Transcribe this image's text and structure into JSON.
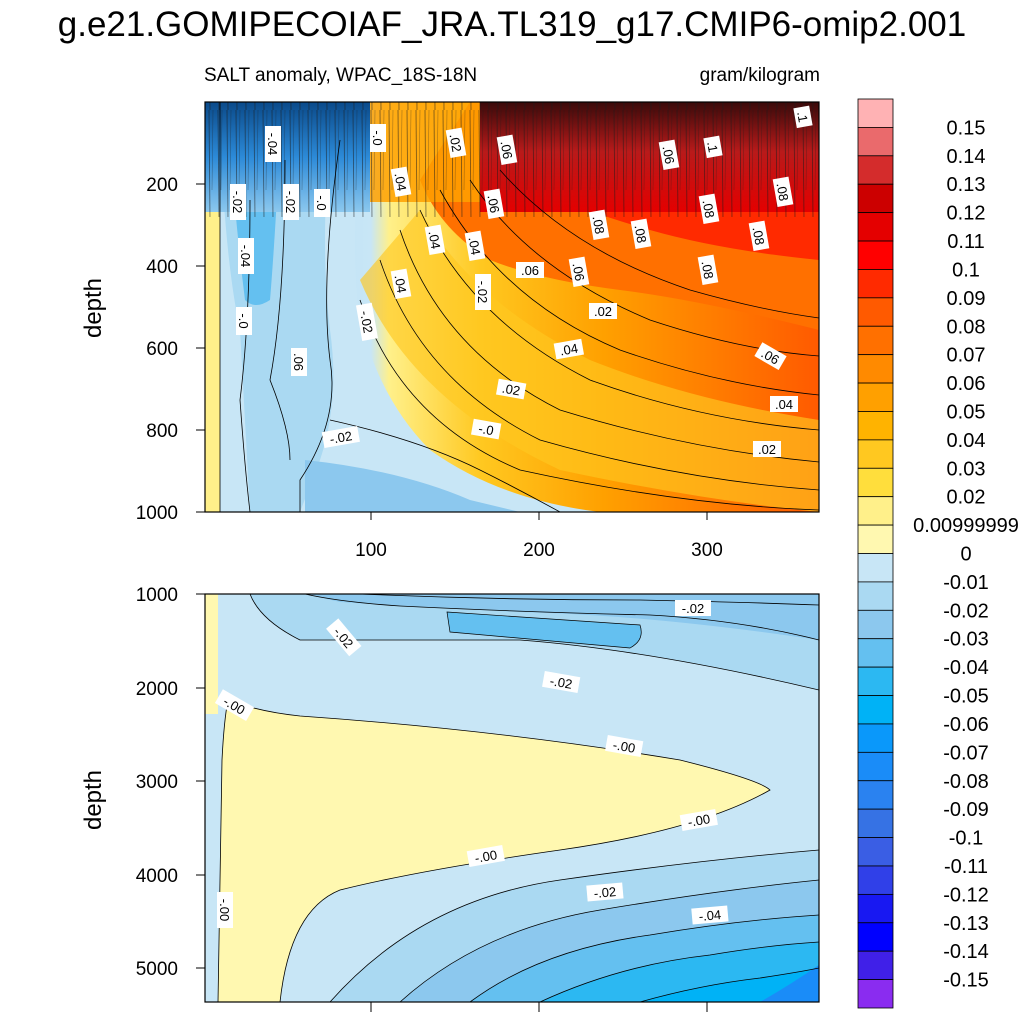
{
  "chart_data": {
    "type": "contour",
    "title": "g.e21.GOMIPECOIAF_JRA.TL319_g17.CMIP6-omip2.001",
    "subtitle_left": "SALT anomaly, WPAC_18S-18N",
    "subtitle_right": "gram/kilogram",
    "xlabel": "",
    "ylabel": "depth",
    "x_range": [
      0,
      366
    ],
    "x_ticks": [
      "100",
      "200",
      "300"
    ],
    "panels": [
      {
        "name": "upper",
        "ylim": [
          1000,
          0
        ],
        "y_ticks": [
          "200",
          "400",
          "600",
          "800",
          "1000"
        ],
        "contour_labels": [
          "-.04",
          "-.0",
          ".02",
          ".06",
          ".06",
          ".1",
          ".1",
          "-.02",
          "-.02",
          "-.0",
          ".04",
          ".06",
          ".08",
          ".08",
          "-.04",
          ".04",
          ".04",
          ".08",
          ".08",
          ".08",
          ".08",
          ".06",
          ".06",
          ".02",
          ".04",
          "-.02",
          "-.0",
          "-.02",
          ".06",
          ".04",
          ".06",
          ".02",
          ".04",
          "-.02",
          "-.0",
          ".02"
        ]
      },
      {
        "name": "lower",
        "ylim": [
          5300,
          1000
        ],
        "y_ticks": [
          "1000",
          "2000",
          "3000",
          "4000",
          "5000"
        ],
        "contour_labels": [
          "-.02",
          "-.02",
          "-.02",
          "-.00",
          "-.00",
          "-.00",
          "-.00",
          "-.02",
          "-.04",
          "-.00"
        ]
      }
    ],
    "colorbar": {
      "labels": [
        "0.15",
        "0.14",
        "0.13",
        "0.12",
        "0.11",
        "0.1",
        "0.09",
        "0.08",
        "0.07",
        "0.06",
        "0.05",
        "0.04",
        "0.03",
        "0.02",
        "0.00999999",
        "0",
        "-0.01",
        "-0.02",
        "-0.03",
        "-0.04",
        "-0.05",
        "-0.06",
        "-0.07",
        "-0.08",
        "-0.09",
        "-0.1",
        "-0.11",
        "-0.12",
        "-0.13",
        "-0.14",
        "-0.15"
      ],
      "colors": [
        "#ffb2b4",
        "#ea6a6c",
        "#d42c2c",
        "#cc0000",
        "#e40000",
        "#ff0000",
        "#ff2a00",
        "#ff5a00",
        "#ff7000",
        "#ff8a00",
        "#ffa000",
        "#ffb300",
        "#ffc820",
        "#ffde3c",
        "#fff08a",
        "#fff8b0",
        "#c8e6f6",
        "#aad9f2",
        "#8cc8ee",
        "#64c0f0",
        "#2cb8f2",
        "#00b2f6",
        "#0a98fa",
        "#1a8cf8",
        "#2a82f0",
        "#3672e4",
        "#3a5ee4",
        "#3040e8",
        "#1818f2",
        "#0000ff",
        "#4020e8",
        "#8a2cf0"
      ]
    },
    "colors": {
      "axis": "#000000",
      "contour_line": "#000000",
      "upper_warm_peak": "#d42c2c",
      "upper_cool": "#aad9f2",
      "lower_fill_yellow": "#fff8b0",
      "lower_fill_blue": "#64c0f0"
    }
  }
}
